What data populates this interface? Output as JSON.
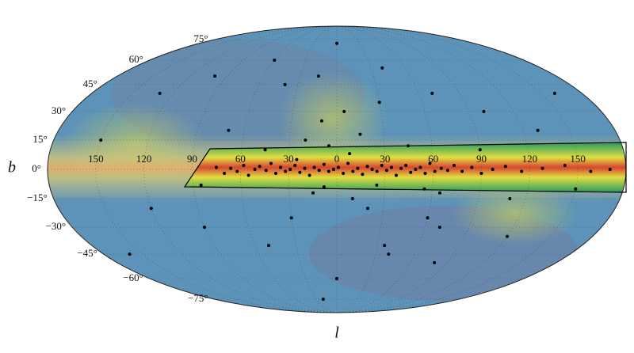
{
  "chart_data": {
    "type": "scatter",
    "projection": "mollweide",
    "xlabel": "l",
    "ylabel": "b",
    "xlim": [
      -180,
      180
    ],
    "ylim": [
      -90,
      90
    ],
    "xticks": [
      {
        "value": -150,
        "label": "150"
      },
      {
        "value": -120,
        "label": "120"
      },
      {
        "value": -90,
        "label": "90"
      },
      {
        "value": -60,
        "label": "60"
      },
      {
        "value": -30,
        "label": "30"
      },
      {
        "value": 0,
        "label": "0"
      },
      {
        "value": 30,
        "label": "30"
      },
      {
        "value": 60,
        "label": "60"
      },
      {
        "value": 90,
        "label": "90"
      },
      {
        "value": 120,
        "label": "120"
      },
      {
        "value": 150,
        "label": "150"
      }
    ],
    "yticks": [
      {
        "value": -75,
        "label": "−75°"
      },
      {
        "value": -60,
        "label": "−60°"
      },
      {
        "value": -45,
        "label": "−45°"
      },
      {
        "value": -30,
        "label": "−30°"
      },
      {
        "value": -15,
        "label": "−15°"
      },
      {
        "value": 0,
        "label": "0°"
      },
      {
        "value": 15,
        "label": "15°"
      },
      {
        "value": 30,
        "label": "30°"
      },
      {
        "value": 45,
        "label": "45°"
      },
      {
        "value": 60,
        "label": "60°"
      },
      {
        "value": 75,
        "label": "75°"
      }
    ],
    "grid": true,
    "series": [
      {
        "color": "#000000",
        "x": [
          -75,
          -70,
          -66,
          -62,
          -58,
          -55,
          -51,
          -48,
          -44,
          -41,
          -38,
          -35,
          -32,
          -29,
          -26,
          -23,
          -20,
          -17,
          -14,
          -11,
          -8,
          -5,
          -2,
          1,
          4,
          7,
          10,
          13,
          16,
          19,
          22,
          25,
          28,
          31,
          34,
          37,
          40,
          43,
          46,
          49,
          52,
          55,
          58,
          61,
          65,
          69,
          73,
          78,
          84,
          90,
          97,
          105,
          115,
          128,
          142,
          158,
          170,
          -10,
          5,
          -20,
          15,
          -5,
          10,
          -15,
          20,
          -30,
          30,
          -40,
          -60,
          40,
          70,
          100,
          130,
          150,
          120,
          80,
          40,
          0,
          -50,
          -90,
          -120,
          -150,
          -130,
          -100,
          -70,
          60,
          90,
          110,
          -25,
          25,
          -45,
          45,
          65,
          -85,
          160,
          -160,
          0,
          -20,
          55,
          70,
          35,
          -15,
          8,
          -8
        ],
        "y": [
          1,
          -2,
          0.5,
          -1,
          2,
          -3,
          0,
          1.5,
          -0.5,
          3,
          -2,
          1,
          -1,
          0,
          2,
          -1.5,
          0.5,
          -3,
          1,
          -0.5,
          2.5,
          -1,
          0,
          1,
          -2,
          3,
          -1,
          0.5,
          -2.5,
          1.5,
          0,
          -1,
          2,
          -0.5,
          1,
          -3,
          0.5,
          2,
          -1.5,
          0,
          1,
          -2,
          3,
          -1,
          0.5,
          -0.5,
          2,
          -1,
          1,
          -2,
          0,
          1.5,
          -1,
          0.5,
          2,
          -1,
          0,
          25,
          30,
          15,
          18,
          12,
          -15,
          -12,
          -20,
          -25,
          35,
          45,
          60,
          55,
          40,
          30,
          20,
          -10,
          -35,
          -50,
          -45,
          -60,
          -40,
          -30,
          -20,
          15,
          40,
          50,
          20,
          -25,
          10,
          -15,
          5,
          -8,
          10,
          12,
          -12,
          -8,
          40,
          -45,
          72,
          -75,
          -10,
          -30,
          -40,
          50,
          8,
          -9
        ]
      }
    ]
  }
}
